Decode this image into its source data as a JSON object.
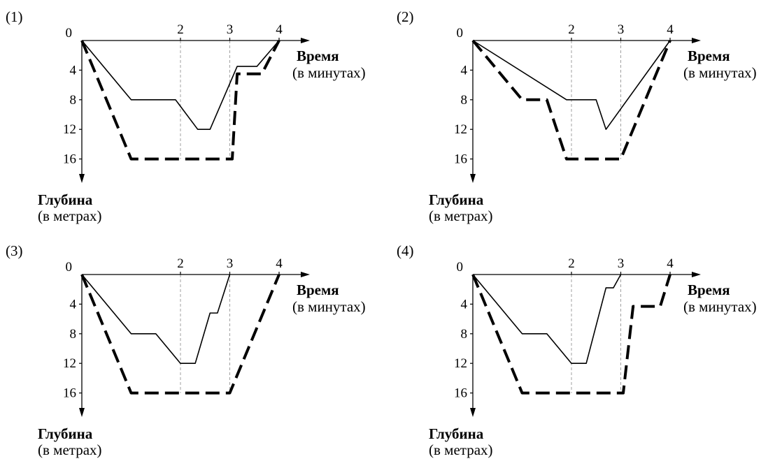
{
  "chart_data": [
    {
      "type": "line",
      "panel_label": "(1)",
      "xlabel": "Время",
      "xlabel_sub": "(в минутах)",
      "ylabel": "Глубина",
      "ylabel_sub": "(в метрах)",
      "x_ticks": [
        "2",
        "3",
        "4"
      ],
      "y_ticks": [
        "0",
        "4",
        "8",
        "12",
        "16"
      ],
      "origin_label": "0",
      "xlim": [
        0,
        4
      ],
      "ylim": [
        0,
        16
      ],
      "y_inverted": true,
      "series": [
        {
          "style": "solid-thin",
          "x": [
            0,
            1,
            1.9,
            2.35,
            2.6,
            3.15,
            3.55,
            4
          ],
          "y": [
            0,
            8,
            8,
            12,
            12,
            3.5,
            3.5,
            0
          ]
        },
        {
          "style": "dashed-thick",
          "x": [
            0,
            1,
            3.05,
            3.15,
            3.65,
            4
          ],
          "y": [
            0,
            16,
            16,
            4.5,
            4.5,
            0
          ]
        }
      ]
    },
    {
      "type": "line",
      "panel_label": "(2)",
      "xlabel": "Время",
      "xlabel_sub": "(в минутах)",
      "ylabel": "Глубина",
      "ylabel_sub": "(в метрах)",
      "x_ticks": [
        "2",
        "3",
        "4"
      ],
      "y_ticks": [
        "0",
        "4",
        "8",
        "12",
        "16"
      ],
      "origin_label": "0",
      "xlim": [
        0,
        4
      ],
      "ylim": [
        0,
        16
      ],
      "y_inverted": true,
      "series": [
        {
          "style": "solid-thin",
          "x": [
            0,
            1.9,
            2.5,
            2.7,
            4
          ],
          "y": [
            0,
            8,
            8,
            12,
            0
          ]
        },
        {
          "style": "dashed-thick",
          "x": [
            0,
            1,
            1.5,
            1.9,
            3,
            4
          ],
          "y": [
            0,
            8,
            8,
            16,
            16,
            0
          ]
        }
      ]
    },
    {
      "type": "line",
      "panel_label": "(3)",
      "xlabel": "Время",
      "xlabel_sub": "(в минутах)",
      "ylabel": "Глубина",
      "ylabel_sub": "(в метрах)",
      "x_ticks": [
        "2",
        "3",
        "4"
      ],
      "y_ticks": [
        "0",
        "4",
        "8",
        "12",
        "16"
      ],
      "origin_label": "0",
      "xlim": [
        0,
        4
      ],
      "ylim": [
        0,
        16
      ],
      "y_inverted": true,
      "series": [
        {
          "style": "solid-thin",
          "x": [
            0,
            1,
            1.5,
            2,
            2.3,
            2.6,
            2.75,
            3
          ],
          "y": [
            0,
            8,
            8,
            12,
            12,
            5.2,
            5.2,
            0
          ]
        },
        {
          "style": "dashed-thick",
          "x": [
            0,
            1,
            3,
            4
          ],
          "y": [
            0,
            16,
            16,
            0
          ]
        }
      ]
    },
    {
      "type": "line",
      "panel_label": "(4)",
      "xlabel": "Время",
      "xlabel_sub": "(в минутах)",
      "ylabel": "Глубина",
      "ylabel_sub": "(в метрах)",
      "x_ticks": [
        "2",
        "3",
        "4"
      ],
      "y_ticks": [
        "0",
        "4",
        "8",
        "12",
        "16"
      ],
      "origin_label": "0",
      "xlim": [
        0,
        4
      ],
      "ylim": [
        0,
        16
      ],
      "y_inverted": true,
      "series": [
        {
          "style": "solid-thin",
          "x": [
            0,
            1,
            1.5,
            2,
            2.3,
            2.7,
            2.85,
            3
          ],
          "y": [
            0,
            8,
            8,
            12,
            12,
            1.8,
            1.8,
            0
          ]
        },
        {
          "style": "dashed-thick",
          "x": [
            0,
            1,
            3.05,
            3.25,
            3.8,
            4
          ],
          "y": [
            0,
            16,
            16,
            4.3,
            4.3,
            0
          ]
        }
      ]
    }
  ]
}
